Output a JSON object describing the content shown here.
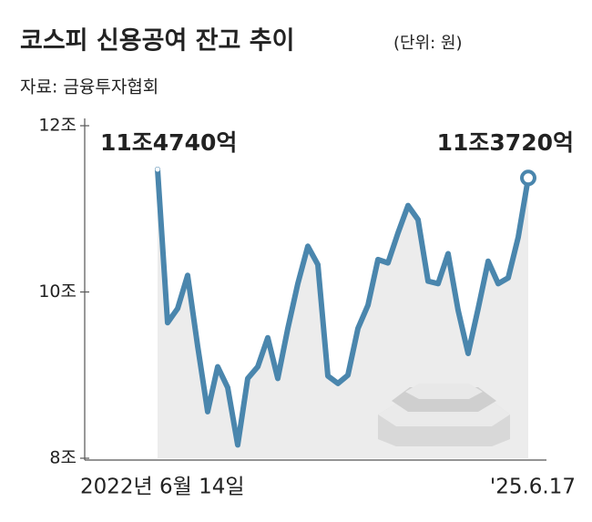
{
  "chart_data": {
    "type": "line",
    "title": "코스피 신용공여 잔고 추이",
    "subtitle": "(단위: 원)",
    "source": "자료: 금융투자협회",
    "categories": [
      "2022년 6월 14일",
      null,
      null,
      null,
      null,
      null,
      null,
      null,
      null,
      null,
      null,
      null,
      null,
      null,
      null,
      null,
      null,
      null,
      null,
      null,
      null,
      null,
      null,
      null,
      null,
      null,
      null,
      null,
      null,
      null,
      null,
      null,
      null,
      null,
      null,
      null,
      null,
      "'25.6.17"
    ],
    "values": [
      11.474,
      9.63,
      9.8,
      10.2,
      9.35,
      8.56,
      9.1,
      8.85,
      8.16,
      8.96,
      9.1,
      9.45,
      8.96,
      9.56,
      10.1,
      10.55,
      10.33,
      8.99,
      8.9,
      9.0,
      9.56,
      9.84,
      10.39,
      10.35,
      10.71,
      11.04,
      10.87,
      10.13,
      10.1,
      10.46,
      9.78,
      9.26,
      9.8,
      10.37,
      10.1,
      10.17,
      10.66,
      11.372
    ],
    "value_labels": [
      "11조4740억",
      null,
      null,
      null,
      null,
      null,
      null,
      null,
      null,
      null,
      null,
      null,
      null,
      null,
      null,
      null,
      null,
      null,
      null,
      null,
      null,
      null,
      null,
      null,
      null,
      null,
      null,
      null,
      null,
      null,
      null,
      null,
      null,
      null,
      null,
      null,
      null,
      "11조3720억"
    ],
    "color": "#4a86ad",
    "ylim": [
      8,
      12
    ],
    "yticks": [
      {
        "value": 8,
        "label": "8조"
      },
      {
        "value": 10,
        "label": "10조"
      },
      {
        "value": 12,
        "label": "12조"
      }
    ]
  }
}
